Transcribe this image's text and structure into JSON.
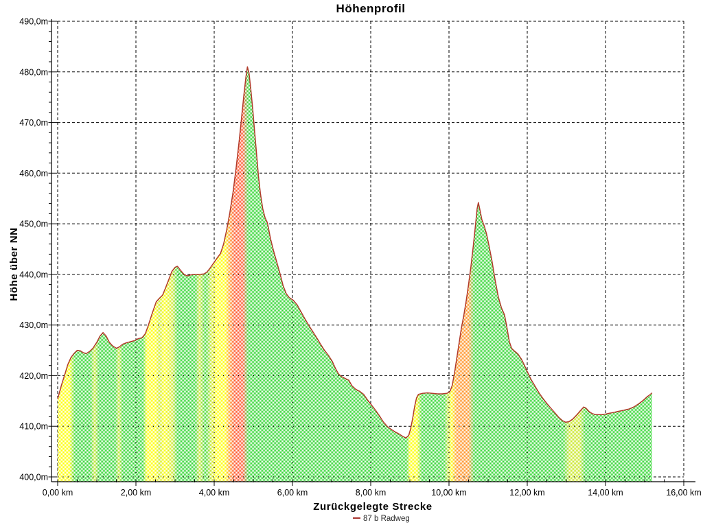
{
  "title": "Höhenprofil",
  "axes": {
    "x": {
      "label": "Zurückgelegte Strecke",
      "unit": "km",
      "min": 0,
      "max": 16,
      "major_step": 2,
      "minor_step": 0.5,
      "ticks": [
        {
          "value": 0,
          "label": "0,00 km"
        },
        {
          "value": 2,
          "label": "2,00 km"
        },
        {
          "value": 4,
          "label": "4,00 km"
        },
        {
          "value": 6,
          "label": "6,00 km"
        },
        {
          "value": 8,
          "label": "8,00 km"
        },
        {
          "value": 10,
          "label": "10,00 km"
        },
        {
          "value": 12,
          "label": "12,00 km"
        },
        {
          "value": 14,
          "label": "14,00 km"
        },
        {
          "value": 16,
          "label": "16,00 km"
        }
      ]
    },
    "y": {
      "label": "Höhe über NN",
      "unit": "m",
      "min": 400,
      "max": 490,
      "major_step": 10,
      "minor_step": 2,
      "ticks": [
        {
          "value": 400,
          "label": "400,0m"
        },
        {
          "value": 410,
          "label": "410,0m"
        },
        {
          "value": 420,
          "label": "420,0m"
        },
        {
          "value": 430,
          "label": "430,0m"
        },
        {
          "value": 440,
          "label": "440,0m"
        },
        {
          "value": 450,
          "label": "450,0m"
        },
        {
          "value": 460,
          "label": "460,0m"
        },
        {
          "value": 470,
          "label": "470,0m"
        },
        {
          "value": 480,
          "label": "480,0m"
        },
        {
          "value": 490,
          "label": "490,0m"
        }
      ]
    }
  },
  "legend": {
    "label": "87 b Radweg",
    "marker_color": "#a83430",
    "position": "bottom-center"
  },
  "colors": {
    "line": "#b13a2b",
    "grid": "#000000",
    "axis": "#000000",
    "slope_flat_or_downhill": "#2fd52f",
    "slope_moderate_climb": "#ffff00",
    "slope_steep_climb": "#ff9020",
    "slope_very_steep_climb": "#ff5228"
  },
  "chart_data": {
    "type": "area",
    "title": "Höhenprofil",
    "xlabel": "Zurückgelegte Strecke",
    "ylabel": "Höhe über NN",
    "x_unit": "km",
    "y_unit": "m",
    "xlim": [
      0,
      16
    ],
    "ylim": [
      400,
      490
    ],
    "grid": true,
    "legend_position": "bottom",
    "series": [
      {
        "name": "87 b Radweg",
        "points": [
          [
            0.0,
            415.4
          ],
          [
            0.05,
            416.8
          ],
          [
            0.1,
            418.2
          ],
          [
            0.18,
            420.2
          ],
          [
            0.26,
            422.2
          ],
          [
            0.34,
            423.6
          ],
          [
            0.42,
            424.4
          ],
          [
            0.5,
            425.0
          ],
          [
            0.58,
            424.9
          ],
          [
            0.66,
            424.5
          ],
          [
            0.74,
            424.4
          ],
          [
            0.82,
            424.8
          ],
          [
            0.9,
            425.4
          ],
          [
            1.0,
            426.6
          ],
          [
            1.08,
            427.8
          ],
          [
            1.16,
            428.5
          ],
          [
            1.24,
            427.8
          ],
          [
            1.32,
            426.6
          ],
          [
            1.4,
            425.9
          ],
          [
            1.5,
            425.4
          ],
          [
            1.58,
            425.7
          ],
          [
            1.66,
            426.2
          ],
          [
            1.76,
            426.5
          ],
          [
            1.86,
            426.7
          ],
          [
            1.96,
            426.9
          ],
          [
            2.06,
            427.3
          ],
          [
            2.16,
            427.5
          ],
          [
            2.24,
            428.3
          ],
          [
            2.32,
            430.0
          ],
          [
            2.42,
            432.4
          ],
          [
            2.52,
            434.6
          ],
          [
            2.6,
            435.3
          ],
          [
            2.68,
            435.9
          ],
          [
            2.76,
            437.4
          ],
          [
            2.84,
            439.0
          ],
          [
            2.92,
            440.6
          ],
          [
            3.0,
            441.4
          ],
          [
            3.06,
            441.6
          ],
          [
            3.14,
            440.8
          ],
          [
            3.22,
            440.1
          ],
          [
            3.3,
            439.7
          ],
          [
            3.4,
            439.9
          ],
          [
            3.5,
            440.0
          ],
          [
            3.62,
            440.0
          ],
          [
            3.74,
            440.1
          ],
          [
            3.82,
            440.5
          ],
          [
            3.9,
            441.3
          ],
          [
            4.0,
            442.4
          ],
          [
            4.08,
            443.3
          ],
          [
            4.16,
            444.1
          ],
          [
            4.24,
            446.0
          ],
          [
            4.32,
            448.8
          ],
          [
            4.4,
            452.2
          ],
          [
            4.48,
            456.2
          ],
          [
            4.56,
            461.0
          ],
          [
            4.64,
            466.5
          ],
          [
            4.7,
            471.0
          ],
          [
            4.76,
            475.5
          ],
          [
            4.81,
            479.0
          ],
          [
            4.85,
            481.0
          ],
          [
            4.89,
            479.8
          ],
          [
            4.93,
            477.0
          ],
          [
            4.98,
            473.0
          ],
          [
            5.03,
            468.5
          ],
          [
            5.08,
            464.0
          ],
          [
            5.13,
            459.5
          ],
          [
            5.18,
            456.0
          ],
          [
            5.24,
            453.0
          ],
          [
            5.3,
            451.2
          ],
          [
            5.36,
            450.2
          ],
          [
            5.44,
            447.0
          ],
          [
            5.52,
            444.6
          ],
          [
            5.6,
            442.4
          ],
          [
            5.68,
            440.2
          ],
          [
            5.76,
            437.8
          ],
          [
            5.84,
            436.2
          ],
          [
            5.92,
            435.4
          ],
          [
            6.02,
            434.9
          ],
          [
            6.12,
            434.0
          ],
          [
            6.22,
            432.6
          ],
          [
            6.32,
            431.2
          ],
          [
            6.42,
            429.9
          ],
          [
            6.52,
            428.7
          ],
          [
            6.62,
            427.5
          ],
          [
            6.72,
            426.2
          ],
          [
            6.82,
            425.0
          ],
          [
            6.92,
            424.0
          ],
          [
            7.02,
            422.8
          ],
          [
            7.1,
            421.4
          ],
          [
            7.18,
            420.3
          ],
          [
            7.26,
            419.8
          ],
          [
            7.36,
            419.4
          ],
          [
            7.44,
            419.1
          ],
          [
            7.52,
            418.0
          ],
          [
            7.62,
            417.3
          ],
          [
            7.72,
            416.9
          ],
          [
            7.82,
            416.3
          ],
          [
            7.92,
            415.2
          ],
          [
            8.02,
            414.2
          ],
          [
            8.12,
            413.2
          ],
          [
            8.22,
            412.1
          ],
          [
            8.32,
            410.9
          ],
          [
            8.42,
            410.0
          ],
          [
            8.52,
            409.4
          ],
          [
            8.62,
            408.9
          ],
          [
            8.72,
            408.5
          ],
          [
            8.82,
            408.0
          ],
          [
            8.9,
            407.7
          ],
          [
            8.97,
            408.2
          ],
          [
            9.02,
            409.5
          ],
          [
            9.07,
            411.5
          ],
          [
            9.12,
            413.8
          ],
          [
            9.17,
            415.6
          ],
          [
            9.22,
            416.3
          ],
          [
            9.32,
            416.5
          ],
          [
            9.45,
            416.6
          ],
          [
            9.58,
            416.5
          ],
          [
            9.7,
            416.4
          ],
          [
            9.82,
            416.4
          ],
          [
            9.94,
            416.5
          ],
          [
            10.02,
            416.8
          ],
          [
            10.08,
            418.0
          ],
          [
            10.14,
            420.5
          ],
          [
            10.2,
            423.5
          ],
          [
            10.26,
            426.5
          ],
          [
            10.32,
            429.5
          ],
          [
            10.38,
            432.0
          ],
          [
            10.44,
            434.8
          ],
          [
            10.5,
            438.0
          ],
          [
            10.56,
            441.5
          ],
          [
            10.62,
            445.5
          ],
          [
            10.68,
            450.0
          ],
          [
            10.72,
            453.0
          ],
          [
            10.75,
            454.2
          ],
          [
            10.79,
            452.8
          ],
          [
            10.84,
            450.8
          ],
          [
            10.9,
            449.6
          ],
          [
            10.96,
            448.0
          ],
          [
            11.02,
            445.8
          ],
          [
            11.1,
            442.6
          ],
          [
            11.18,
            438.8
          ],
          [
            11.26,
            435.6
          ],
          [
            11.34,
            433.4
          ],
          [
            11.42,
            432.0
          ],
          [
            11.48,
            429.5
          ],
          [
            11.54,
            426.8
          ],
          [
            11.6,
            425.4
          ],
          [
            11.68,
            424.8
          ],
          [
            11.76,
            424.3
          ],
          [
            11.84,
            423.4
          ],
          [
            11.92,
            422.2
          ],
          [
            12.0,
            420.8
          ],
          [
            12.1,
            419.2
          ],
          [
            12.2,
            417.9
          ],
          [
            12.3,
            416.6
          ],
          [
            12.4,
            415.5
          ],
          [
            12.5,
            414.5
          ],
          [
            12.6,
            413.6
          ],
          [
            12.7,
            412.7
          ],
          [
            12.8,
            411.8
          ],
          [
            12.9,
            411.1
          ],
          [
            12.98,
            410.8
          ],
          [
            13.06,
            410.9
          ],
          [
            13.16,
            411.4
          ],
          [
            13.26,
            412.2
          ],
          [
            13.36,
            413.1
          ],
          [
            13.44,
            413.8
          ],
          [
            13.5,
            413.6
          ],
          [
            13.58,
            412.9
          ],
          [
            13.66,
            412.5
          ],
          [
            13.76,
            412.3
          ],
          [
            13.88,
            412.3
          ],
          [
            14.0,
            412.4
          ],
          [
            14.12,
            412.6
          ],
          [
            14.24,
            412.8
          ],
          [
            14.36,
            413.0
          ],
          [
            14.48,
            413.2
          ],
          [
            14.6,
            413.4
          ],
          [
            14.72,
            413.8
          ],
          [
            14.84,
            414.4
          ],
          [
            14.96,
            415.1
          ],
          [
            15.06,
            415.8
          ],
          [
            15.13,
            416.2
          ],
          [
            15.19,
            416.6
          ]
        ]
      }
    ],
    "slope_stripes": [
      [
        0.0,
        "#ffff00"
      ],
      [
        0.3,
        "#ffff00"
      ],
      [
        0.44,
        "#2fd52f"
      ],
      [
        0.84,
        "#2fd52f"
      ],
      [
        0.94,
        "#c8e622"
      ],
      [
        1.06,
        "#2fd52f"
      ],
      [
        1.48,
        "#2fd52f"
      ],
      [
        1.56,
        "#c8e622"
      ],
      [
        1.66,
        "#2fd52f"
      ],
      [
        2.18,
        "#2fd52f"
      ],
      [
        2.28,
        "#ffff00"
      ],
      [
        2.5,
        "#ffff00"
      ],
      [
        2.6,
        "#c8e622"
      ],
      [
        2.72,
        "#ffff00"
      ],
      [
        2.94,
        "#c8e622"
      ],
      [
        3.06,
        "#2fd52f"
      ],
      [
        3.52,
        "#2fd52f"
      ],
      [
        3.62,
        "#c8e622"
      ],
      [
        3.78,
        "#2fd52f"
      ],
      [
        3.92,
        "#c8e622"
      ],
      [
        4.04,
        "#ffff00"
      ],
      [
        4.28,
        "#ffff00"
      ],
      [
        4.4,
        "#ff9020"
      ],
      [
        4.52,
        "#ff5228"
      ],
      [
        4.74,
        "#ff5228"
      ],
      [
        4.86,
        "#2fd52f"
      ],
      [
        8.92,
        "#2fd52f"
      ],
      [
        9.0,
        "#ffff00"
      ],
      [
        9.18,
        "#ffff00"
      ],
      [
        9.3,
        "#2fd52f"
      ],
      [
        9.88,
        "#2fd52f"
      ],
      [
        9.98,
        "#c8e622"
      ],
      [
        10.06,
        "#ffff00"
      ],
      [
        10.2,
        "#ff9020"
      ],
      [
        10.5,
        "#ff9020"
      ],
      [
        10.64,
        "#2fd52f"
      ],
      [
        12.92,
        "#2fd52f"
      ],
      [
        13.08,
        "#c8e622"
      ],
      [
        13.34,
        "#c8e622"
      ],
      [
        13.48,
        "#2fd52f"
      ],
      [
        15.19,
        "#2fd52f"
      ]
    ]
  }
}
